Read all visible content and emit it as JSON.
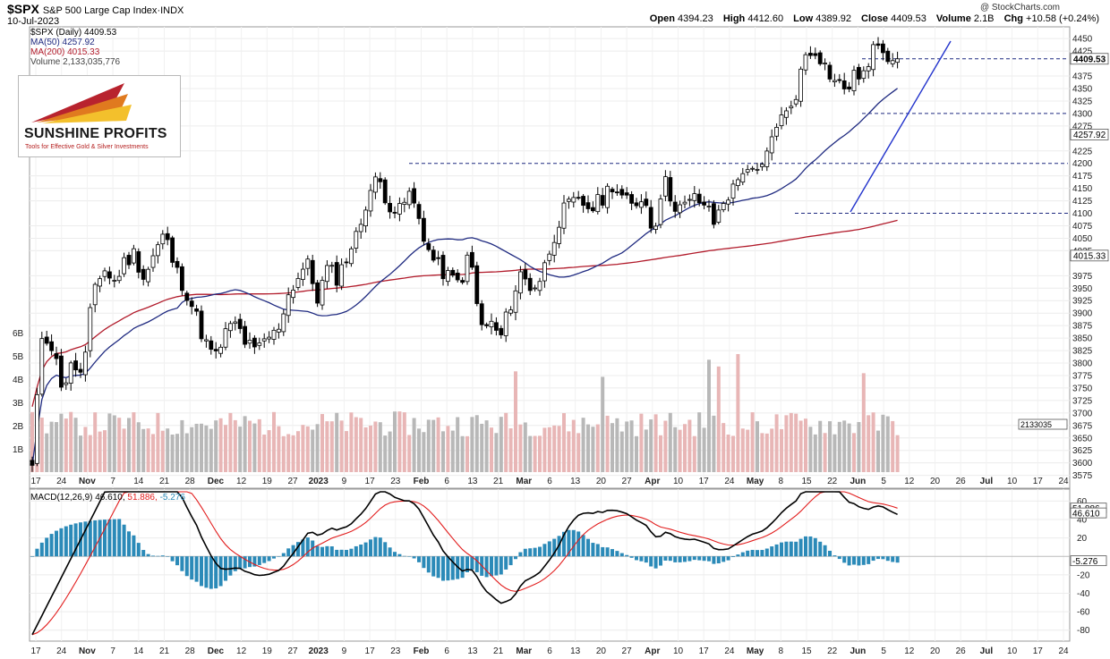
{
  "header": {
    "symbol": "$SPX",
    "index_name": "S&P 500 Large Cap Index",
    "exchange": "INDX",
    "date": "10-Jul-2023",
    "copyright": "@ StockCharts.com",
    "open_label": "Open",
    "open": "4394.23",
    "high_label": "High",
    "high": "4412.60",
    "low_label": "Low",
    "low": "4389.92",
    "close_label": "Close",
    "close": "4409.53",
    "volume_label": "Volume",
    "volume": "2.1B",
    "chg_label": "Chg",
    "chg": "+10.58 (+0.24%)"
  },
  "legend": {
    "spx": "$SPX (Daily) 4409.53",
    "ma50": "MA(50) 4257.92",
    "ma200": "MA(200) 4015.33",
    "volume": "Volume 2,133,035,776",
    "macd_name": "MACD(12,26,9)",
    "macd_val": "46.610,",
    "signal_val": "51.886,",
    "hist_val": "-5.276"
  },
  "logo": {
    "name": "SUNSHINE PROFITS",
    "tagline": "Tools for Effective Gold & Silver Investments"
  },
  "colors": {
    "up": "#ffffff",
    "down": "#000000",
    "ma50": "#1f2a80",
    "ma200": "#b11a2a",
    "vol_up": "#e8b6b6",
    "vol_down": "#b8b8b8",
    "macd": "#000000",
    "signal": "#e21d1d",
    "hist": "#2b8ab8",
    "hline": "#1f2a80",
    "trend": "#2233cc"
  },
  "chart_data": {
    "type": "candlestick",
    "price_ticks": [
      4450,
      4425,
      4375,
      4350,
      4325,
      4275,
      4225,
      4175,
      4150,
      4125,
      4075,
      4050,
      4025,
      3975,
      3950,
      3925,
      3900,
      3875,
      3850,
      3825,
      3800,
      3775,
      3750,
      3725,
      3700,
      3675,
      3650,
      3625,
      3600,
      3575
    ],
    "price_ylim": [
      3560,
      4470
    ],
    "price_tags": [
      {
        "value": 4409.53,
        "text": "4409.53",
        "bold": true
      },
      {
        "value": 4257.92,
        "text": "4257.92",
        "bold": false
      },
      {
        "value": 4015.33,
        "text": "4015.33",
        "bold": false
      }
    ],
    "levels": [
      {
        "value": 4300,
        "text": "4300"
      },
      {
        "value": 4200,
        "text": "4200"
      },
      {
        "value": 4100,
        "text": "4100"
      }
    ],
    "hlines": [
      {
        "value": 4409.53,
        "from": 3050
      },
      {
        "value": 4300,
        "from": 3050
      },
      {
        "value": 4200,
        "from": 3000
      },
      {
        "value": 4100,
        "from": 3050
      }
    ],
    "volume_ticks": [
      "6B",
      "5B",
      "4B",
      "3B",
      "2B",
      "1B"
    ],
    "volume_tag": "2133035",
    "macd_ticks": [
      60,
      40,
      20,
      -20,
      -40,
      -60,
      -80
    ],
    "macd_ylim": [
      -90,
      70
    ],
    "macd_tags": [
      {
        "value": 51.886,
        "text": "51.886"
      },
      {
        "value": 46.61,
        "text": "46.610"
      },
      {
        "value": -5.276,
        "text": "-5.276"
      }
    ],
    "x_ticks": [
      {
        "label": "17",
        "bold": false
      },
      {
        "label": "24",
        "bold": false
      },
      {
        "label": "Nov",
        "bold": true
      },
      {
        "label": "7",
        "bold": false
      },
      {
        "label": "14",
        "bold": false
      },
      {
        "label": "21",
        "bold": false
      },
      {
        "label": "28",
        "bold": false
      },
      {
        "label": "Dec",
        "bold": true
      },
      {
        "label": "12",
        "bold": false
      },
      {
        "label": "19",
        "bold": false
      },
      {
        "label": "27",
        "bold": false
      },
      {
        "label": "2023",
        "bold": true
      },
      {
        "label": "9",
        "bold": false
      },
      {
        "label": "17",
        "bold": false
      },
      {
        "label": "23",
        "bold": false
      },
      {
        "label": "Feb",
        "bold": true
      },
      {
        "label": "6",
        "bold": false
      },
      {
        "label": "13",
        "bold": false
      },
      {
        "label": "21",
        "bold": false
      },
      {
        "label": "Mar",
        "bold": true
      },
      {
        "label": "6",
        "bold": false
      },
      {
        "label": "13",
        "bold": false
      },
      {
        "label": "20",
        "bold": false
      },
      {
        "label": "27",
        "bold": false
      },
      {
        "label": "Apr",
        "bold": true
      },
      {
        "label": "10",
        "bold": false
      },
      {
        "label": "17",
        "bold": false
      },
      {
        "label": "24",
        "bold": false
      },
      {
        "label": "May",
        "bold": true
      },
      {
        "label": "8",
        "bold": false
      },
      {
        "label": "15",
        "bold": false
      },
      {
        "label": "22",
        "bold": false
      },
      {
        "label": "Jun",
        "bold": true
      },
      {
        "label": "5",
        "bold": false
      },
      {
        "label": "12",
        "bold": false
      },
      {
        "label": "20",
        "bold": false
      },
      {
        "label": "26",
        "bold": false
      },
      {
        "label": "Jul",
        "bold": true
      },
      {
        "label": "10",
        "bold": false
      },
      {
        "label": "17",
        "bold": false
      },
      {
        "label": "24",
        "bold": false
      }
    ],
    "close_anchors": [
      [
        3590,
        3870,
        3830,
        3750,
        3800,
        3770,
        3950,
        3990,
        3960,
        4000,
        4020,
        3970
      ],
      [
        4020,
        4060,
        3990,
        3950,
        3900,
        3840,
        3810,
        3860,
        3880,
        3840,
        3820,
        3850
      ],
      [
        3860,
        3930,
        3970,
        4000,
        3930,
        3990,
        3970,
        4020,
        4060,
        4140,
        4170,
        4120
      ],
      [
        4100,
        4140,
        4090,
        4020,
        3990,
        3970,
        3960,
        4020,
        3870,
        3880,
        3850,
        3920
      ],
      [
        3980,
        3950,
        3970,
        4040,
        4100,
        4120,
        4120,
        4110,
        4130,
        4160,
        4130,
        4110
      ],
      [
        4140,
        4060,
        4170,
        4120,
        4110,
        4130,
        4120,
        4080,
        4130,
        4150,
        4200,
        4170
      ],
      [
        4200,
        4280,
        4295,
        4340,
        4420,
        4430,
        4390,
        4360,
        4350,
        4380,
        4380,
        4450
      ],
      [
        4420,
        4410
      ]
    ]
  }
}
